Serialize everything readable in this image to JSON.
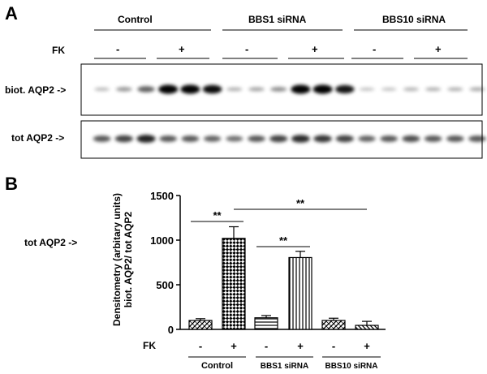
{
  "panelA": {
    "letter": "A",
    "groups": [
      "Control",
      "BBS1 siRNA",
      "BBS10 siRNA"
    ],
    "fk_label": "FK",
    "signs": [
      "-",
      "+",
      "-",
      "+",
      "-",
      "+"
    ],
    "row_labels": [
      "biot. AQP2 ->",
      "tot AQP2 ->"
    ],
    "blot_biot": [
      0.15,
      0.3,
      0.55,
      1.0,
      1.0,
      0.95,
      0.2,
      0.25,
      0.35,
      1.0,
      1.0,
      0.9,
      0.12,
      0.12,
      0.18,
      0.2,
      0.2,
      0.22
    ],
    "blot_tot": [
      0.6,
      0.7,
      0.85,
      0.6,
      0.6,
      0.55,
      0.5,
      0.6,
      0.7,
      0.8,
      0.75,
      0.7,
      0.55,
      0.6,
      0.65,
      0.6,
      0.6,
      0.6
    ]
  },
  "panelB": {
    "letter": "B",
    "side_label": "tot AQP2 ->",
    "fk_label": "FK"
  },
  "chart_data": {
    "type": "bar",
    "ylabel": "Densitometry (arbitary units)\nbiot. AQP2/ tot AQP2",
    "ylim": [
      0,
      1500
    ],
    "yticks": [
      0,
      500,
      1000,
      1500
    ],
    "categories": [
      "-",
      "+",
      "-",
      "+",
      "-",
      "+"
    ],
    "groups": [
      "Control",
      "BBS1 siRNA",
      "BBS10 siRNA"
    ],
    "values": [
      100,
      1020,
      130,
      805,
      100,
      45
    ],
    "errors": [
      20,
      130,
      25,
      70,
      25,
      45
    ],
    "patterns": [
      "diag-cross",
      "checker",
      "hstripe",
      "vstripe",
      "diag-cross",
      "diag-right"
    ],
    "significance": [
      {
        "from": 0,
        "to": 1,
        "label": "**"
      },
      {
        "from": 2,
        "to": 3,
        "label": "**"
      },
      {
        "from": 1,
        "to": 5,
        "label": "**"
      }
    ]
  }
}
